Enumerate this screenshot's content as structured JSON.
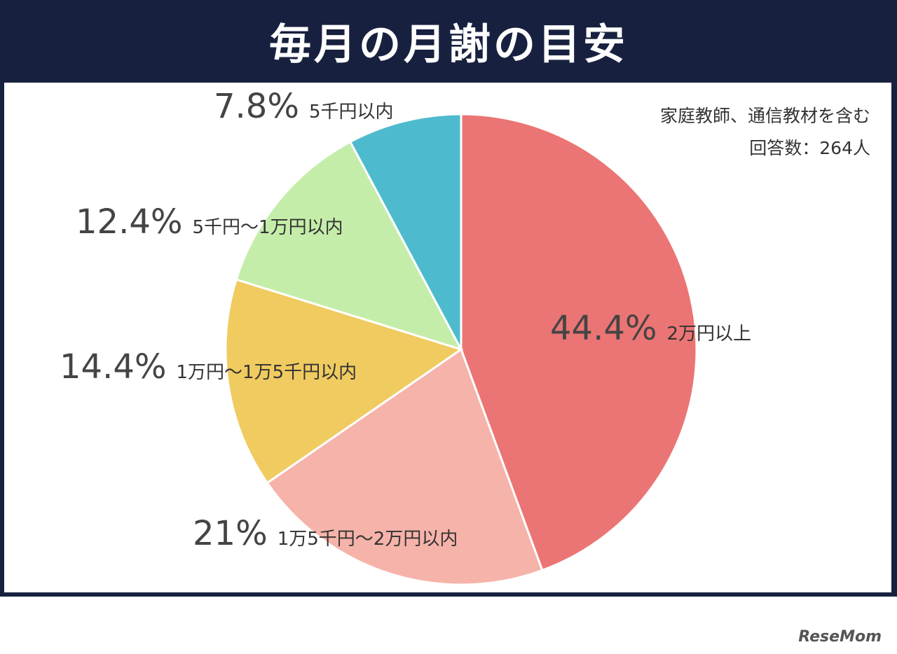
{
  "title": "毎月の月謝の目安",
  "notes": {
    "line1": "家庭教師、通信教材を含む",
    "line2": "回答数：264人"
  },
  "watermark": "ReseMom",
  "colors": {
    "header_bg": "#17213f",
    "slice_1": "#eb7574",
    "slice_2": "#f6b3aa",
    "slice_3": "#f0cb60",
    "slice_4": "#c5edaa",
    "slice_5": "#4dbbcd"
  },
  "chart_data": {
    "type": "pie",
    "title": "毎月の月謝の目安",
    "slices": [
      {
        "category": "2万円以上",
        "value": 44.4,
        "label": "44.4%",
        "color": "#eb7574"
      },
      {
        "category": "1万5千円〜2万円以内",
        "value": 21,
        "label": "21%",
        "color": "#f6b3aa"
      },
      {
        "category": "1万円〜1万5千円以内",
        "value": 14.4,
        "label": "14.4%",
        "color": "#f0cb60"
      },
      {
        "category": "5千円〜1万円以内",
        "value": 12.4,
        "label": "12.4%",
        "color": "#c5edaa"
      },
      {
        "category": "5千円以内",
        "value": 7.8,
        "label": "7.8%",
        "color": "#4dbbcd"
      }
    ],
    "start_angle": "12 o'clock",
    "direction": "clockwise"
  }
}
